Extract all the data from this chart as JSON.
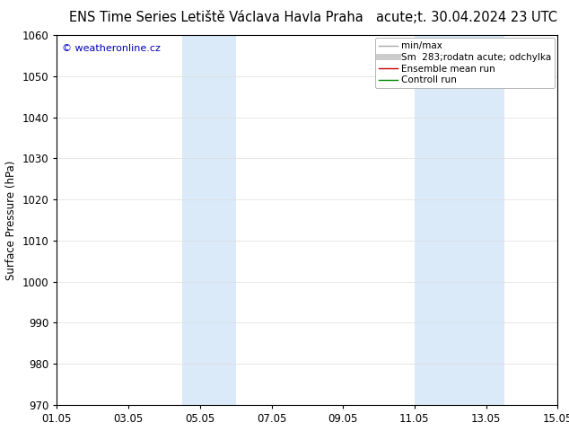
{
  "title_left": "ENS Time Series Letiště Václava Havla Praha",
  "title_right": "acute;t. 30.04.2024 23 UTC",
  "ylabel": "Surface Pressure (hPa)",
  "ylim": [
    970,
    1060
  ],
  "yticks": [
    970,
    980,
    990,
    1000,
    1010,
    1020,
    1030,
    1040,
    1050,
    1060
  ],
  "xlim_start": 0,
  "xlim_end": 14,
  "xtick_labels": [
    "01.05",
    "03.05",
    "05.05",
    "07.05",
    "09.05",
    "11.05",
    "13.05",
    "15.05"
  ],
  "xtick_positions": [
    0,
    2,
    4,
    6,
    8,
    10,
    12,
    14
  ],
  "blue_bands": [
    {
      "xmin": 3.5,
      "xmax": 5.0
    },
    {
      "xmin": 10.0,
      "xmax": 12.5
    }
  ],
  "blue_band_color": "#daeaf8",
  "copyright_text": "© weatheronline.cz",
  "copyright_color": "#0000bb",
  "legend_entries": [
    {
      "label": "min/max",
      "color": "#aaaaaa",
      "lw": 1.0
    },
    {
      "label": "Sm  283;rodatn acute; odchylka",
      "color": "#cccccc",
      "lw": 5
    },
    {
      "label": "Ensemble mean run",
      "color": "#cc0000",
      "lw": 1.0
    },
    {
      "label": "Controll run",
      "color": "#008800",
      "lw": 1.0
    }
  ],
  "bg_color": "#ffffff",
  "grid_color": "#dddddd",
  "title_fontsize": 10.5,
  "tick_fontsize": 8.5,
  "ylabel_fontsize": 8.5,
  "legend_fontsize": 7.5,
  "copyright_fontsize": 8.0
}
